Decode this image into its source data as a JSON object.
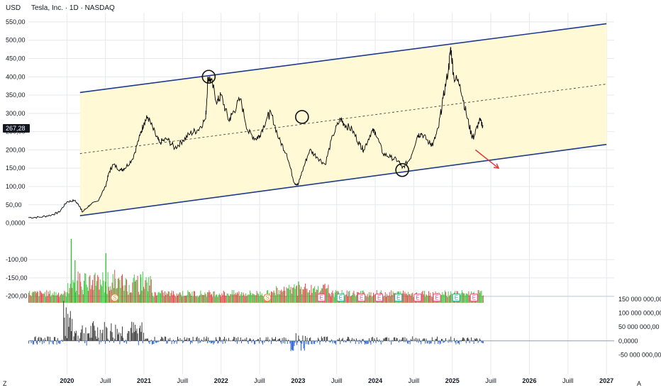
{
  "header": {
    "currency": "USD",
    "title": "Tesla, Inc. · 1D · NASDAQ"
  },
  "price_tag": "267,28",
  "corner_left": "Z",
  "corner_right": "A",
  "colors": {
    "channel": "#1e3a8a",
    "channel_fill": "#fff9d6",
    "price_line": "#000000",
    "vol_up": "#26c026",
    "vol_down": "#e03030",
    "osc_up": "#3d3d3d",
    "osc_down": "#2a62d6",
    "arrow": "#e03a3a"
  },
  "chart_data": [
    {
      "type": "line",
      "name": "price",
      "ylim": [
        -220,
        575
      ],
      "yticks": [
        "550,00",
        "500,00",
        "450,00",
        "400,00",
        "350,00",
        "300,00",
        "250,00",
        "200,00",
        "150,00",
        "100,00",
        "50,00",
        "0,0000",
        "-100,00",
        "-150,00",
        "-200,00"
      ],
      "ytick_values": [
        550,
        500,
        450,
        400,
        350,
        300,
        250,
        200,
        150,
        100,
        50,
        0,
        -100,
        -150,
        -200
      ],
      "xticks": [
        "2020",
        "Juill",
        "2021",
        "Juill",
        "2022",
        "Juill",
        "2023",
        "Juill",
        "2024",
        "Juill",
        "2025",
        "Juill",
        "2026",
        "Juill",
        "2027"
      ],
      "xtick_dates": [
        2020.0,
        2020.5,
        2021.0,
        2021.5,
        2022.0,
        2022.5,
        2023.0,
        2023.5,
        2024.0,
        2024.5,
        2025.0,
        2025.5,
        2026.0,
        2026.5,
        2027.0
      ],
      "series": [
        {
          "values": [
            [
              2019.5,
              15
            ],
            [
              2019.65,
              16
            ],
            [
              2019.8,
              22
            ],
            [
              2019.9,
              30
            ],
            [
              2020.0,
              58
            ],
            [
              2020.1,
              62
            ],
            [
              2020.17,
              45
            ],
            [
              2020.2,
              30
            ],
            [
              2020.3,
              50
            ],
            [
              2020.4,
              60
            ],
            [
              2020.5,
              100
            ],
            [
              2020.55,
              140
            ],
            [
              2020.6,
              160
            ],
            [
              2020.7,
              145
            ],
            [
              2020.75,
              150
            ],
            [
              2020.85,
              175
            ],
            [
              2020.95,
              240
            ],
            [
              2021.0,
              275
            ],
            [
              2021.05,
              290
            ],
            [
              2021.15,
              240
            ],
            [
              2021.2,
              220
            ],
            [
              2021.3,
              230
            ],
            [
              2021.4,
              205
            ],
            [
              2021.5,
              225
            ],
            [
              2021.6,
              245
            ],
            [
              2021.7,
              255
            ],
            [
              2021.8,
              285
            ],
            [
              2021.83,
              400
            ],
            [
              2021.87,
              390
            ],
            [
              2021.95,
              330
            ],
            [
              2022.0,
              350
            ],
            [
              2022.1,
              280
            ],
            [
              2022.15,
              300
            ],
            [
              2022.25,
              340
            ],
            [
              2022.35,
              250
            ],
            [
              2022.45,
              230
            ],
            [
              2022.5,
              240
            ],
            [
              2022.6,
              290
            ],
            [
              2022.65,
              300
            ],
            [
              2022.75,
              230
            ],
            [
              2022.85,
              190
            ],
            [
              2022.95,
              110
            ],
            [
              2023.0,
              105
            ],
            [
              2023.05,
              140
            ],
            [
              2023.15,
              200
            ],
            [
              2023.25,
              180
            ],
            [
              2023.35,
              160
            ],
            [
              2023.45,
              240
            ],
            [
              2023.55,
              285
            ],
            [
              2023.6,
              270
            ],
            [
              2023.7,
              255
            ],
            [
              2023.8,
              215
            ],
            [
              2023.85,
              200
            ],
            [
              2023.95,
              250
            ],
            [
              2024.0,
              250
            ],
            [
              2024.1,
              190
            ],
            [
              2024.2,
              180
            ],
            [
              2024.3,
              170
            ],
            [
              2024.35,
              150
            ],
            [
              2024.45,
              175
            ],
            [
              2024.55,
              240
            ],
            [
              2024.6,
              245
            ],
            [
              2024.7,
              220
            ],
            [
              2024.75,
              215
            ],
            [
              2024.82,
              260
            ],
            [
              2024.88,
              340
            ],
            [
              2024.95,
              420
            ],
            [
              2024.98,
              480
            ],
            [
              2025.02,
              400
            ],
            [
              2025.1,
              380
            ],
            [
              2025.18,
              300
            ],
            [
              2025.25,
              240
            ],
            [
              2025.28,
              235
            ],
            [
              2025.35,
              280
            ],
            [
              2025.4,
              267
            ]
          ]
        }
      ],
      "annotations": {
        "channel_upper": [
          [
            2020.17,
            357
          ],
          [
            2027.0,
            545
          ]
        ],
        "channel_lower": [
          [
            2020.17,
            20
          ],
          [
            2027.0,
            215
          ]
        ],
        "channel_mid": [
          [
            2020.17,
            190
          ],
          [
            2027.0,
            380
          ]
        ],
        "circles": [
          [
            2021.84,
            400
          ],
          [
            2023.05,
            290
          ],
          [
            2024.35,
            145
          ]
        ],
        "arrow": [
          [
            2025.3,
            200
          ],
          [
            2025.6,
            150
          ]
        ]
      }
    },
    {
      "type": "bar",
      "name": "volume",
      "note_events": [
        "S",
        "S",
        "E",
        "E",
        "E",
        "E",
        "E",
        "E",
        "E",
        "E",
        "E"
      ]
    },
    {
      "type": "bar",
      "name": "oscillator",
      "ylim": [
        -100000000,
        160000000
      ],
      "yticks": [
        "150 000 000,00",
        "100 000 000,00",
        "50 000 000,00",
        "0,0000",
        "-50 000 000,00"
      ],
      "ytick_values": [
        150000000,
        100000000,
        50000000,
        0,
        -50000000
      ]
    }
  ]
}
